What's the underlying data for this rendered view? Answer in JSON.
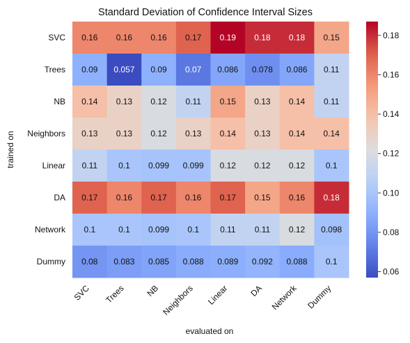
{
  "chart_data": {
    "type": "heatmap",
    "title": "Standard Deviation of Confidence Interval Sizes",
    "xlabel": "evaluated on",
    "ylabel": "trained on",
    "x_categories": [
      "SVC",
      "Trees",
      "NB",
      "Neighbors",
      "Linear",
      "DA",
      "Network",
      "Dummy"
    ],
    "y_categories": [
      "SVC",
      "Trees",
      "NB",
      "Neighbors",
      "Linear",
      "DA",
      "Network",
      "Dummy"
    ],
    "values": [
      [
        0.16,
        0.16,
        0.16,
        0.17,
        0.19,
        0.18,
        0.18,
        0.15
      ],
      [
        0.09,
        0.057,
        0.09,
        0.07,
        0.086,
        0.078,
        0.086,
        0.11
      ],
      [
        0.14,
        0.13,
        0.12,
        0.11,
        0.15,
        0.13,
        0.14,
        0.11
      ],
      [
        0.13,
        0.13,
        0.12,
        0.13,
        0.14,
        0.13,
        0.14,
        0.14
      ],
      [
        0.11,
        0.1,
        0.099,
        0.099,
        0.12,
        0.12,
        0.12,
        0.1
      ],
      [
        0.17,
        0.16,
        0.17,
        0.16,
        0.17,
        0.15,
        0.16,
        0.18
      ],
      [
        0.1,
        0.1,
        0.099,
        0.1,
        0.11,
        0.11,
        0.12,
        0.098
      ],
      [
        0.08,
        0.083,
        0.085,
        0.088,
        0.089,
        0.092,
        0.088,
        0.1
      ]
    ],
    "colorbar": {
      "colormap": "coolwarm",
      "range": [
        0.057,
        0.187
      ],
      "ticks": [
        0.06,
        0.08,
        0.1,
        0.12,
        0.14,
        0.16,
        0.18
      ],
      "tick_labels": [
        "0.06",
        "0.08",
        "0.10",
        "0.12",
        "0.14",
        "0.16",
        "0.18"
      ]
    },
    "grid": false,
    "legend": "colorbar-right"
  }
}
